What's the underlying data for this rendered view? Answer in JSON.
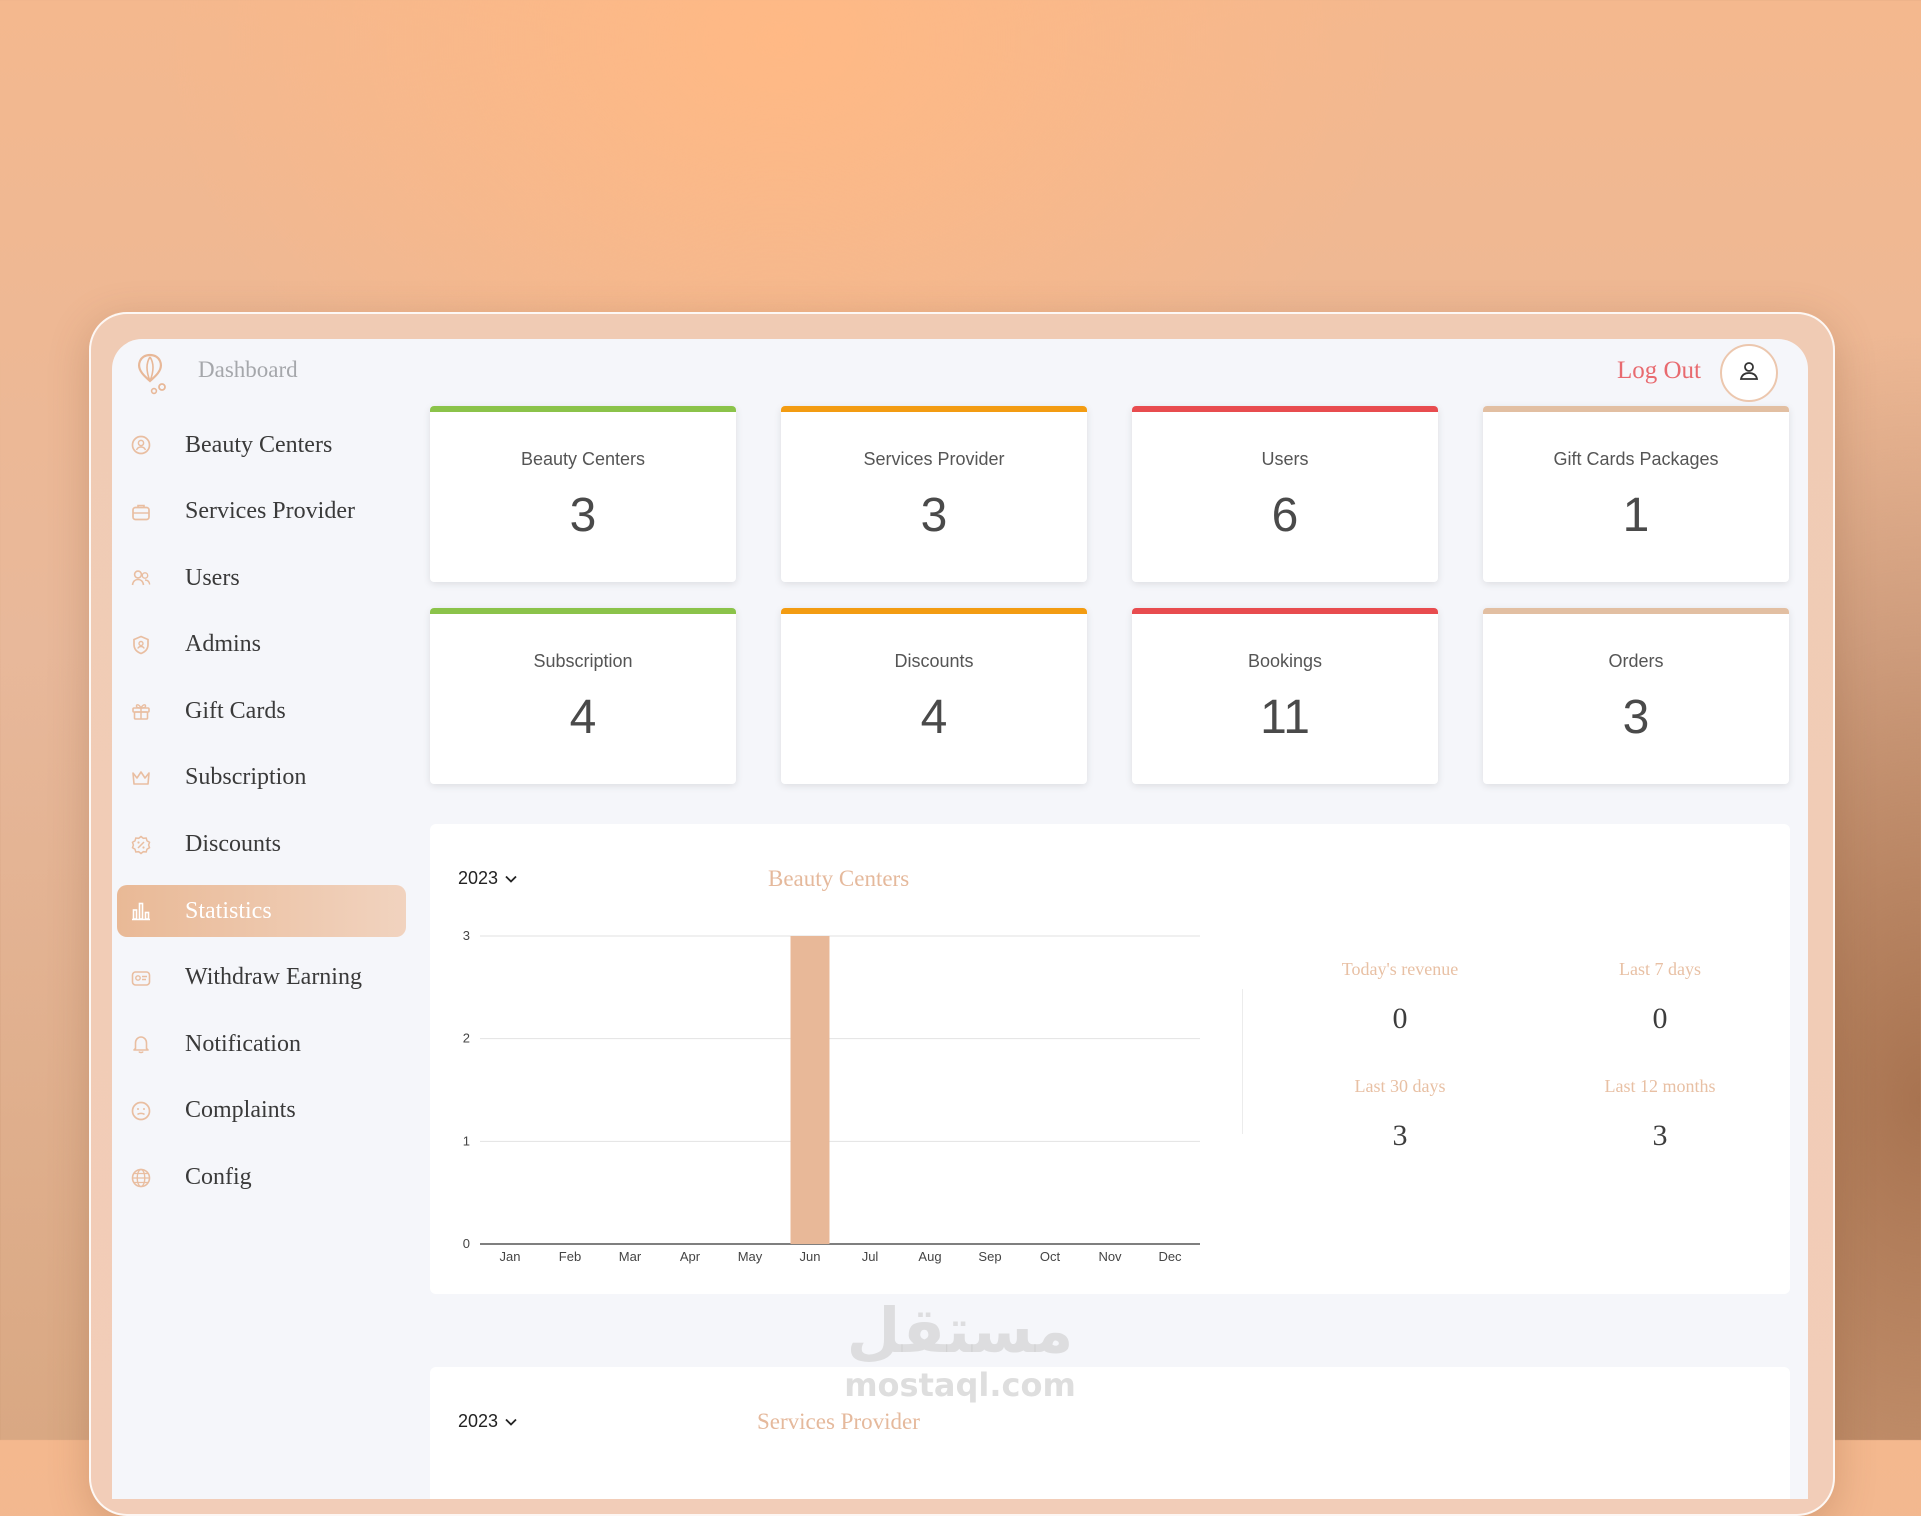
{
  "header": {
    "brand": "Dashboard",
    "logout_label": "Log Out",
    "logo_icon": "balloon-logo-icon",
    "avatar_icon": "user-icon"
  },
  "sidebar": {
    "items": [
      {
        "label": "Beauty Centers",
        "icon": "badge-icon"
      },
      {
        "label": "Services Provider",
        "icon": "briefcase-icon"
      },
      {
        "label": "Users",
        "icon": "users-icon"
      },
      {
        "label": "Admins",
        "icon": "admin-shield-icon"
      },
      {
        "label": "Gift Cards",
        "icon": "gift-icon"
      },
      {
        "label": "Subscription",
        "icon": "crown-icon"
      },
      {
        "label": "Discounts",
        "icon": "discount-icon"
      },
      {
        "label": "Statistics",
        "icon": "bar-chart-icon",
        "active": true
      },
      {
        "label": "Withdraw Earning",
        "icon": "wallet-icon"
      },
      {
        "label": "Notification",
        "icon": "bell-icon"
      },
      {
        "label": "Complaints",
        "icon": "complaint-icon"
      },
      {
        "label": "Config",
        "icon": "globe-icon"
      }
    ]
  },
  "cards": [
    {
      "label": "Beauty Centers",
      "value": "3",
      "color": "#8bc34a"
    },
    {
      "label": "Services Provider",
      "value": "3",
      "color": "#f39c12"
    },
    {
      "label": "Users",
      "value": "6",
      "color": "#e84c4f"
    },
    {
      "label": "Gift Cards Packages",
      "value": "1",
      "color": "#e2bfa2"
    },
    {
      "label": "Subscription",
      "value": "4",
      "color": "#8bc34a"
    },
    {
      "label": "Discounts",
      "value": "4",
      "color": "#f39c12"
    },
    {
      "label": "Bookings",
      "value": "11",
      "color": "#e84c4f"
    },
    {
      "label": "Orders",
      "value": "3",
      "color": "#e2bfa2"
    }
  ],
  "beauty_panel": {
    "year": "2023",
    "title": "Beauty Centers",
    "stats": {
      "today_label": "Today's revenue",
      "today_value": "0",
      "week_label": "Last 7 days",
      "week_value": "0",
      "month_label": "Last 30 days",
      "month_value": "3",
      "year_label": "Last 12 months",
      "year_value": "3"
    }
  },
  "services_panel": {
    "year": "2023",
    "title": "Services Provider"
  },
  "chart_data": {
    "type": "bar",
    "categories": [
      "Jan",
      "Feb",
      "Mar",
      "Apr",
      "May",
      "Jun",
      "Jul",
      "Aug",
      "Sep",
      "Oct",
      "Nov",
      "Dec"
    ],
    "values": [
      0,
      0,
      0,
      0,
      0,
      3,
      0,
      0,
      0,
      0,
      0,
      0
    ],
    "ylim": [
      0,
      3
    ],
    "yticks": [
      "0",
      "1",
      "2",
      "3"
    ],
    "grid": true,
    "bar_color": "#e8b898"
  },
  "watermark": {
    "arabic": "مستقل",
    "latin": "mostaql.com"
  }
}
